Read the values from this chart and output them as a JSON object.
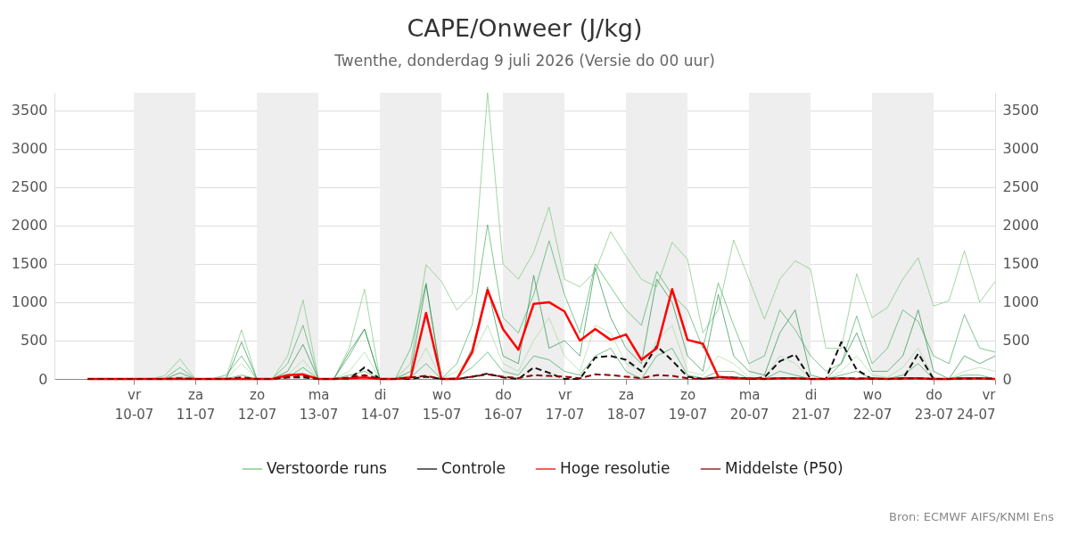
{
  "chart_data": {
    "type": "line",
    "title": "CAPE/Onweer (J/kg)",
    "subtitle": "Twenthe, donderdag  9 juli 2026 (Versie do 00 uur)",
    "annotations": [
      "Bron: ECMWF AIFS/KNMI Ens"
    ],
    "x": [
      "2026-07-09T06:00",
      "2026-07-09T12:00",
      "2026-07-09T18:00",
      "2026-07-10T00:00",
      "2026-07-10T06:00",
      "2026-07-10T12:00",
      "2026-07-10T18:00",
      "2026-07-11T00:00",
      "2026-07-11T06:00",
      "2026-07-11T12:00",
      "2026-07-11T18:00",
      "2026-07-12T00:00",
      "2026-07-12T06:00",
      "2026-07-12T12:00",
      "2026-07-12T18:00",
      "2026-07-13T00:00",
      "2026-07-13T06:00",
      "2026-07-13T12:00",
      "2026-07-13T18:00",
      "2026-07-14T00:00",
      "2026-07-14T06:00",
      "2026-07-14T12:00",
      "2026-07-14T18:00",
      "2026-07-15T00:00",
      "2026-07-15T06:00",
      "2026-07-15T12:00",
      "2026-07-15T18:00",
      "2026-07-16T00:00",
      "2026-07-16T06:00",
      "2026-07-16T12:00",
      "2026-07-16T18:00",
      "2026-07-17T00:00",
      "2026-07-17T06:00",
      "2026-07-17T12:00",
      "2026-07-17T18:00",
      "2026-07-18T00:00",
      "2026-07-18T06:00",
      "2026-07-18T12:00",
      "2026-07-18T18:00",
      "2026-07-19T00:00",
      "2026-07-19T06:00",
      "2026-07-19T12:00",
      "2026-07-19T18:00",
      "2026-07-20T00:00",
      "2026-07-20T06:00",
      "2026-07-20T12:00",
      "2026-07-20T18:00",
      "2026-07-21T00:00",
      "2026-07-21T06:00",
      "2026-07-21T12:00",
      "2026-07-21T18:00",
      "2026-07-22T00:00",
      "2026-07-22T06:00",
      "2026-07-22T12:00",
      "2026-07-22T18:00",
      "2026-07-23T00:00",
      "2026-07-23T06:00",
      "2026-07-23T12:00",
      "2026-07-23T18:00",
      "2026-07-24T00:00"
    ],
    "series": [
      {
        "name": "Verstoorde runs",
        "color": "#74c476",
        "values": [
          null,
          null,
          null,
          null,
          0,
          40,
          260,
          0,
          0,
          20,
          640,
          0,
          0,
          300,
          1030,
          0,
          0,
          400,
          1170,
          0,
          0,
          200,
          1490,
          1270,
          900,
          1100,
          3730,
          1500,
          1300,
          1650,
          2240,
          1300,
          1200,
          1400,
          1920,
          1600,
          1300,
          1200,
          1780,
          1560,
          600,
          900,
          1810,
          1300,
          780,
          1300,
          1540,
          1430,
          400,
          400,
          1370,
          800,
          930,
          1300,
          1580,
          950,
          1020,
          1670,
          1000,
          1270
        ]
      },
      {
        "color": "#41ab5d",
        "values": [
          null,
          null,
          null,
          null,
          0,
          10,
          150,
          0,
          0,
          50,
          300,
          0,
          0,
          200,
          700,
          0,
          0,
          300,
          650,
          0,
          0,
          400,
          1250,
          0,
          200,
          700,
          2010,
          800,
          600,
          1100,
          1800,
          1100,
          600,
          1500,
          1200,
          900,
          700,
          1400,
          1100,
          900,
          400,
          1250,
          700,
          200,
          300,
          900,
          640,
          300,
          100,
          200,
          820,
          200,
          400,
          900,
          750,
          300,
          200,
          840,
          400,
          350
        ]
      },
      {
        "color": "#238b45",
        "values": [
          null,
          null,
          null,
          null,
          0,
          0,
          80,
          0,
          0,
          0,
          480,
          0,
          0,
          100,
          450,
          0,
          0,
          350,
          650,
          0,
          0,
          100,
          1230,
          0,
          0,
          400,
          1200,
          300,
          200,
          1350,
          400,
          500,
          300,
          1450,
          800,
          400,
          200,
          1300,
          1000,
          300,
          100,
          1100,
          300,
          100,
          50,
          600,
          900,
          50,
          0,
          200,
          600,
          100,
          100,
          300,
          900,
          100,
          0,
          300,
          200,
          300
        ]
      },
      {
        "color": "#a1d99b",
        "values": [
          null,
          null,
          null,
          null,
          0,
          0,
          30,
          0,
          0,
          0,
          200,
          0,
          0,
          50,
          250,
          0,
          0,
          100,
          350,
          0,
          0,
          50,
          400,
          0,
          100,
          300,
          700,
          200,
          100,
          500,
          800,
          300,
          100,
          700,
          600,
          200,
          100,
          500,
          700,
          100,
          50,
          300,
          200,
          20,
          10,
          300,
          200,
          0,
          0,
          100,
          300,
          50,
          20,
          150,
          400,
          20,
          0,
          100,
          150,
          100
        ]
      },
      {
        "color": "#31a354",
        "values": [
          null,
          null,
          null,
          null,
          null,
          null,
          null,
          null,
          0,
          0,
          50,
          0,
          0,
          20,
          150,
          0,
          0,
          50,
          100,
          0,
          0,
          20,
          200,
          0,
          20,
          150,
          350,
          100,
          50,
          300,
          250,
          100,
          50,
          300,
          400,
          100,
          0,
          300,
          400,
          50,
          10,
          100,
          100,
          0,
          0,
          100,
          50,
          0,
          0,
          50,
          100,
          0,
          0,
          50,
          200,
          0,
          0,
          50,
          50,
          0
        ]
      },
      {
        "name": "Controle",
        "color": "#111111",
        "line_style": "dashed",
        "values": [
          0,
          0,
          0,
          0,
          0,
          0,
          0,
          0,
          0,
          0,
          0,
          0,
          0,
          20,
          20,
          0,
          0,
          0,
          150,
          0,
          0,
          0,
          30,
          0,
          0,
          30,
          70,
          20,
          0,
          150,
          80,
          0,
          0,
          280,
          300,
          250,
          100,
          430,
          240,
          30,
          0,
          20,
          20,
          0,
          20,
          230,
          320,
          0,
          0,
          480,
          120,
          0,
          0,
          0,
          330,
          0,
          0,
          0,
          10,
          0
        ]
      },
      {
        "name": "Hoge resolutie",
        "color": "#ff0000",
        "line_style": "solid",
        "values": [
          0,
          0,
          0,
          0,
          0,
          0,
          0,
          0,
          0,
          0,
          0,
          0,
          0,
          50,
          60,
          0,
          0,
          10,
          20,
          0,
          0,
          20,
          860,
          0,
          0,
          350,
          1160,
          650,
          380,
          980,
          1000,
          880,
          500,
          650,
          510,
          580,
          250,
          400,
          1170,
          510,
          460,
          30,
          10,
          10,
          0,
          10,
          10,
          0,
          0,
          10,
          0,
          10,
          0,
          10,
          10,
          0,
          0,
          10,
          10,
          0
        ]
      },
      {
        "name": "Middelste (P50)",
        "color": "#8b0000",
        "line_style": "dashed",
        "values": [
          0,
          0,
          0,
          0,
          0,
          0,
          10,
          0,
          0,
          0,
          20,
          0,
          0,
          20,
          40,
          0,
          0,
          20,
          50,
          0,
          0,
          20,
          40,
          0,
          0,
          30,
          60,
          30,
          10,
          50,
          40,
          30,
          10,
          60,
          50,
          30,
          10,
          50,
          40,
          10,
          0,
          20,
          20,
          0,
          0,
          10,
          10,
          0,
          0,
          10,
          10,
          0,
          0,
          10,
          10,
          0,
          0,
          10,
          10,
          0
        ]
      }
    ],
    "xlim": [
      "2026-07-08T17:00",
      "2026-07-24T00:00"
    ],
    "xticks": [
      {
        "value": "2026-07-10",
        "label": "vr\n10-07"
      },
      {
        "value": "2026-07-11",
        "label": "za\n11-07"
      },
      {
        "value": "2026-07-12",
        "label": "zo\n12-07"
      },
      {
        "value": "2026-07-13",
        "label": "ma\n13-07"
      },
      {
        "value": "2026-07-14",
        "label": "di\n14-07"
      },
      {
        "value": "2026-07-15",
        "label": "wo\n15-07"
      },
      {
        "value": "2026-07-16",
        "label": "do\n16-07"
      },
      {
        "value": "2026-07-17",
        "label": "vr\n17-07"
      },
      {
        "value": "2026-07-18",
        "label": "za\n18-07"
      },
      {
        "value": "2026-07-19",
        "label": "zo\n19-07"
      },
      {
        "value": "2026-07-20",
        "label": "ma\n20-07"
      },
      {
        "value": "2026-07-21",
        "label": "di\n21-07"
      },
      {
        "value": "2026-07-22",
        "label": "wo\n22-07"
      },
      {
        "value": "2026-07-23",
        "label": "do\n23-07"
      },
      {
        "value": "2026-07-24",
        "label": "vr\n24-07"
      }
    ],
    "ylim": [
      0,
      3730
    ],
    "yticks": [
      0,
      500,
      1000,
      1500,
      2000,
      2500,
      3000,
      3500
    ],
    "y2lim": [
      0,
      3730
    ],
    "y2ticks": [
      0,
      500,
      1000,
      1500,
      2000,
      2500,
      3000,
      3500
    ],
    "bands": [
      {
        "axis": "x",
        "from": "2026-07-10",
        "to": "2026-07-11",
        "color": "#eeeeee"
      },
      {
        "axis": "x",
        "from": "2026-07-12",
        "to": "2026-07-13",
        "color": "#eeeeee"
      },
      {
        "axis": "x",
        "from": "2026-07-14",
        "to": "2026-07-15",
        "color": "#eeeeee"
      },
      {
        "axis": "x",
        "from": "2026-07-16",
        "to": "2026-07-17",
        "color": "#eeeeee"
      },
      {
        "axis": "x",
        "from": "2026-07-18",
        "to": "2026-07-19",
        "color": "#eeeeee"
      },
      {
        "axis": "x",
        "from": "2026-07-20",
        "to": "2026-07-21",
        "color": "#eeeeee"
      },
      {
        "axis": "x",
        "from": "2026-07-22",
        "to": "2026-07-23",
        "color": "#eeeeee"
      }
    ],
    "grid": "y",
    "legend": "bottom",
    "marker": "none"
  }
}
